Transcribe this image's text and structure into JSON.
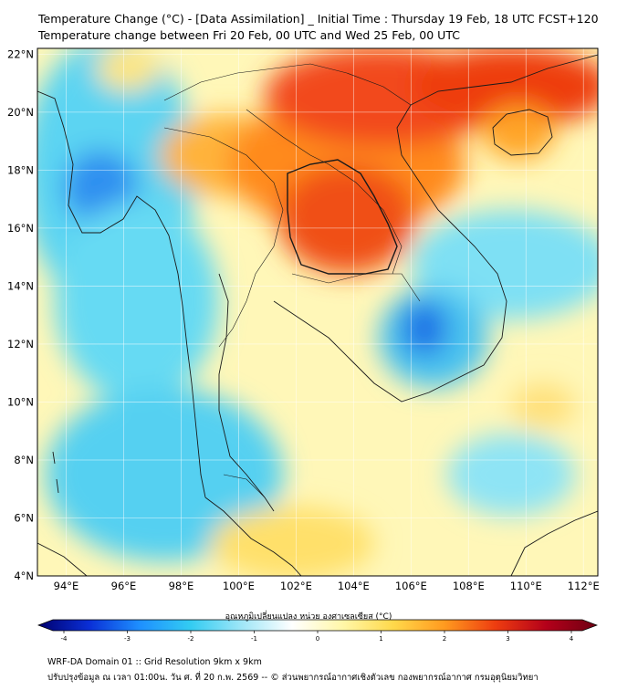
{
  "title_line1": "Temperature Change (°C) - [Data Assimilation] _ Initial Time : Thursday 19 Feb, 18 UTC FCST+120",
  "title_line2": "Temperature change between Fri 20 Feb, 00 UTC and Wed 25 Feb, 00 UTC",
  "lat_labels": [
    "22°N",
    "20°N",
    "18°N",
    "16°N",
    "14°N",
    "12°N",
    "10°N",
    "8°N",
    "6°N",
    "4°N"
  ],
  "lat_values": [
    22,
    20,
    18,
    16,
    14,
    12,
    10,
    8,
    6,
    4
  ],
  "lon_labels": [
    "94°E",
    "96°E",
    "98°E",
    "100°E",
    "102°E",
    "104°E",
    "106°E",
    "108°E",
    "110°E",
    "112°E"
  ],
  "lon_values": [
    94,
    96,
    98,
    100,
    102,
    104,
    106,
    108,
    110,
    112
  ],
  "colorbar": {
    "label": "อุณหภูมิเปลี่ยนแปลง หน่วย องศาเซลเซียส (°C)",
    "tick_labels": [
      "-4",
      "-3",
      "-2",
      "-1",
      "0",
      "1",
      "2",
      "3",
      "4"
    ],
    "tick_values": [
      -4,
      -3,
      -2,
      -1,
      0,
      1,
      2,
      3,
      4
    ],
    "min": -4,
    "max": 4,
    "colors": [
      "#00006e",
      "#0a2fd6",
      "#1e90ff",
      "#33ccf2",
      "#9fe6f7",
      "#ffffff",
      "#fff7a8",
      "#ffd84a",
      "#ff9a1f",
      "#ee3d10",
      "#b4001a",
      "#6e0012"
    ]
  },
  "footer_line1": "WRF-DA Domain 01 :: Grid Resolution 9km x 9km",
  "footer_line2": "ปรับปรุงข้อมูล ณ เวลา 01:00น. วัน ศ. ที่ 20 ก.พ. 2569 -- © ส่วนพยากรณ์อากาศเชิงตัวเลข กองพยากรณ์อากาศ กรมอุตุนิยมวิทยา",
  "map_extent": {
    "lon_min": 93,
    "lon_max": 112.5,
    "lat_min": 4,
    "lat_max": 22.2
  }
}
